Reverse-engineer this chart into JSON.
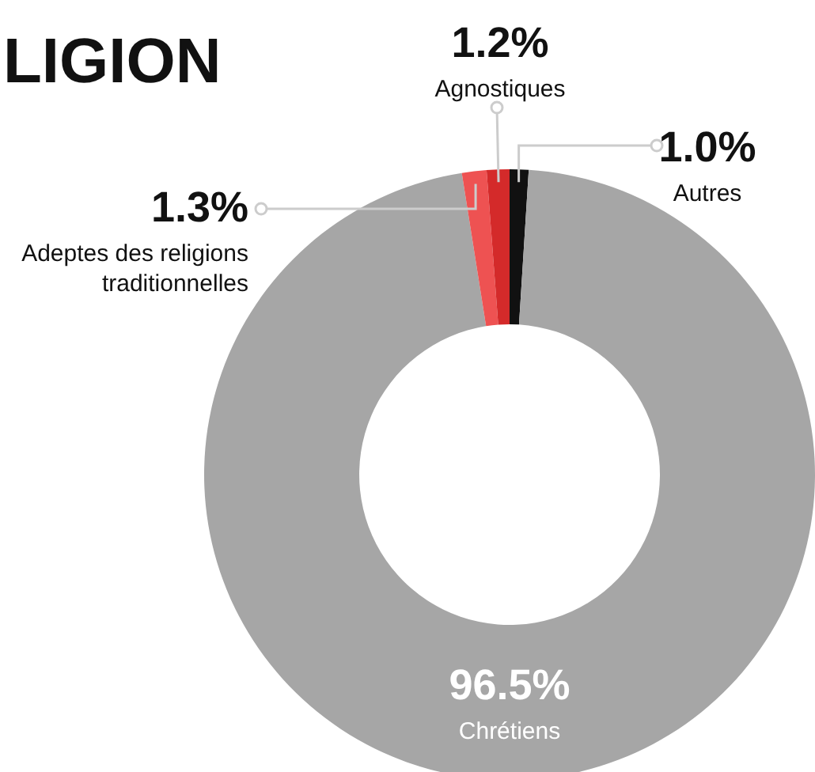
{
  "chart_data": {
    "type": "donut",
    "title": "LIGION",
    "categories": [
      "Autres",
      "Chrétiens",
      "Adeptes des religions traditionnelles",
      "Agnostiques"
    ],
    "values": [
      1.0,
      96.5,
      1.3,
      1.2
    ],
    "colors": [
      "#111111",
      "#a6a6a6",
      "#ee5252",
      "#d42a2a"
    ],
    "value_labels": [
      "1.0%",
      "96.5%",
      "1.3%",
      "1.2%"
    ]
  }
}
